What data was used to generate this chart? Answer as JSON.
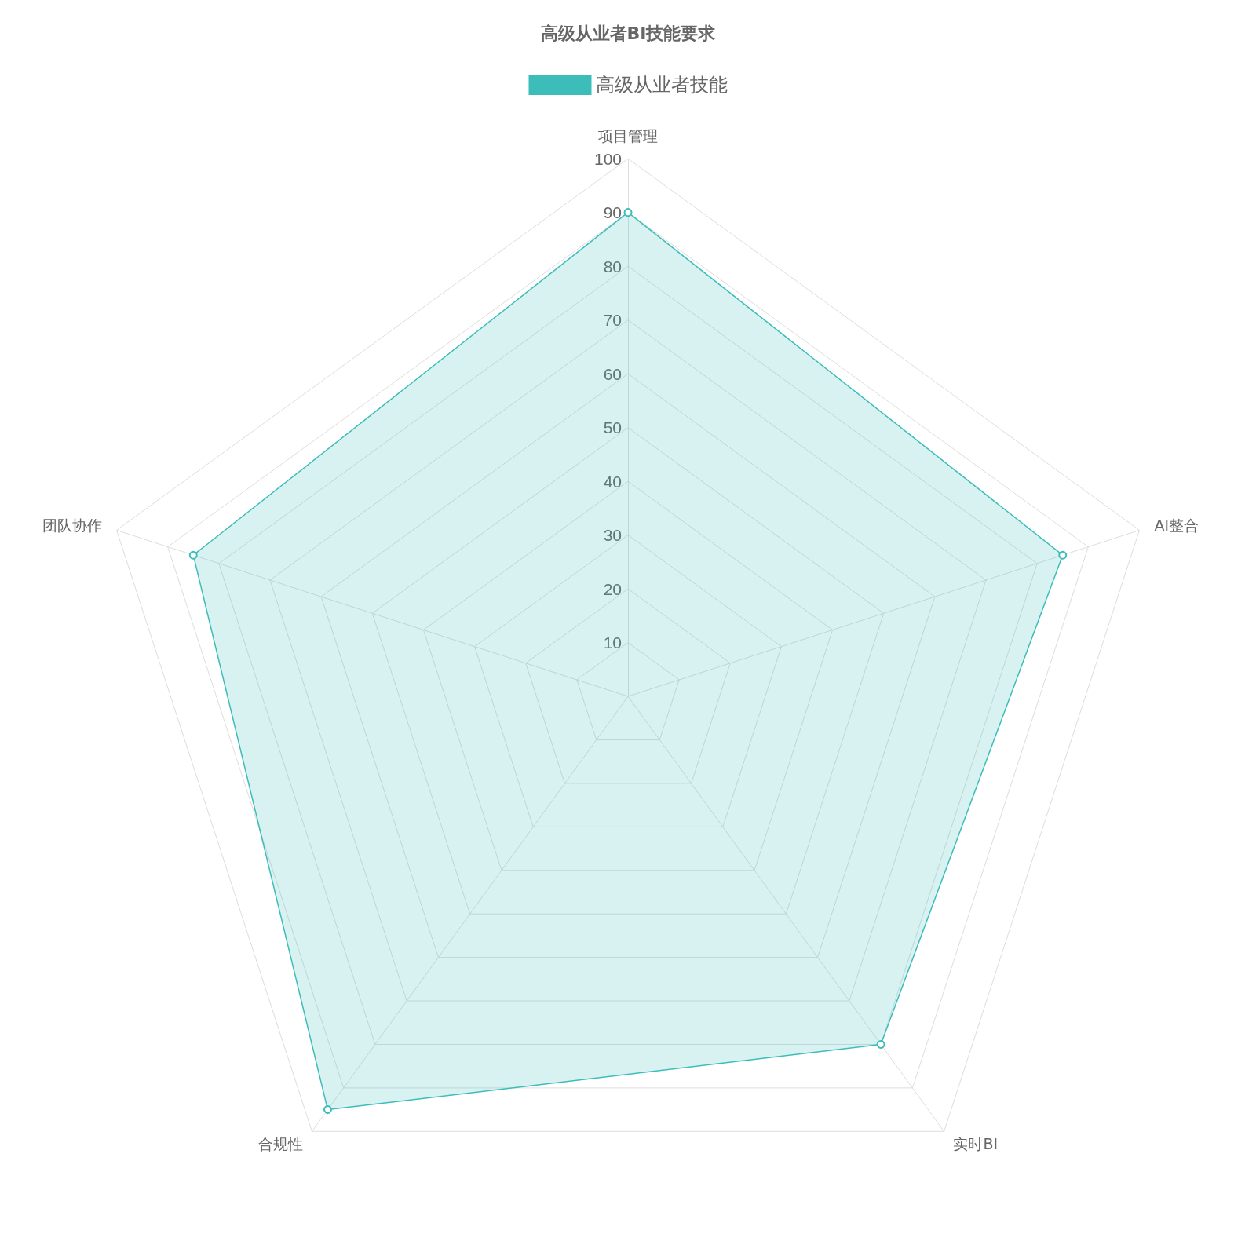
{
  "chart_data": {
    "type": "radar",
    "title": "高级从业者BI技能要求",
    "categories": [
      "项目管理",
      "AI整合",
      "实时BI",
      "合规性",
      "团队协作"
    ],
    "series": [
      {
        "name": "高级从业者技能",
        "color": "#3dbdba",
        "values": [
          90,
          85,
          80,
          95,
          85
        ]
      }
    ],
    "ylim": [
      0,
      100
    ],
    "yticks": [
      10,
      20,
      30,
      40,
      50,
      60,
      70,
      80,
      90,
      100
    ],
    "grid": true,
    "legend": "top",
    "marker": "circle",
    "line_style": "solid"
  }
}
